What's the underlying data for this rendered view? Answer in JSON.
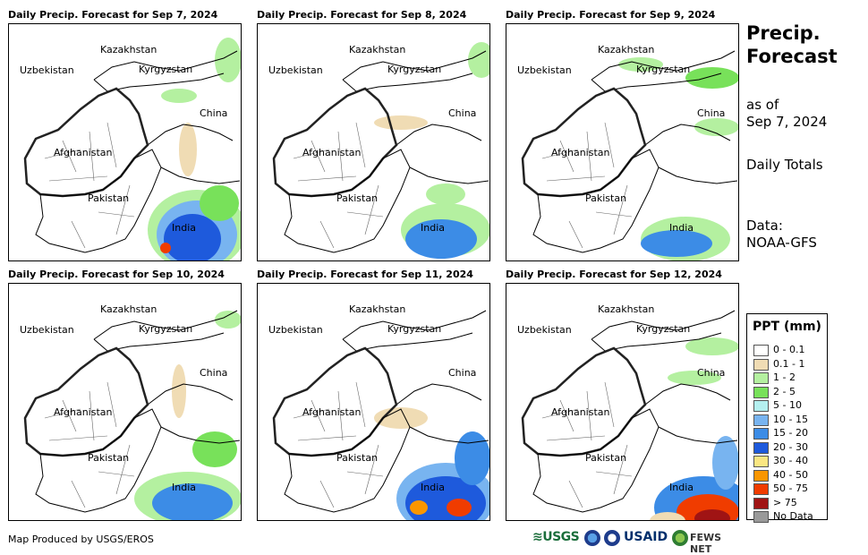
{
  "panels": [
    {
      "title": "Daily Precip. Forecast for Sep 7, 2024"
    },
    {
      "title": "Daily Precip. Forecast for Sep 8, 2024"
    },
    {
      "title": "Daily Precip. Forecast for Sep 9, 2024"
    },
    {
      "title": "Daily Precip. Forecast for Sep 10, 2024"
    },
    {
      "title": "Daily Precip. Forecast for Sep 11, 2024"
    },
    {
      "title": "Daily Precip. Forecast for Sep 12, 2024"
    }
  ],
  "country_labels": {
    "kazakhstan": "Kazakhstan",
    "uzbekistan": "Uzbekistan",
    "kyrgyzstan": "Kyrgyzstan",
    "china": "China",
    "afghanistan": "Afghanistan",
    "pakistan": "Pakistan",
    "india": "India"
  },
  "side": {
    "title_line1": "Precip.",
    "title_line2": "Forecast",
    "asof_line1": "as of",
    "asof_line2": "Sep 7, 2024",
    "totals": "Daily Totals",
    "data_line1": "Data:",
    "data_line2": "NOAA-GFS"
  },
  "legend": {
    "title": "PPT (mm)",
    "items": [
      {
        "label": "0 - 0.1",
        "color": "#ffffff"
      },
      {
        "label": "0.1 - 1",
        "color": "#f0dcb4"
      },
      {
        "label": "1 - 2",
        "color": "#b4f0a0"
      },
      {
        "label": "2 - 5",
        "color": "#78e15a"
      },
      {
        "label": "5 - 10",
        "color": "#b4f0f0"
      },
      {
        "label": "10 - 15",
        "color": "#78b4f0"
      },
      {
        "label": "15 - 20",
        "color": "#3c8ce6"
      },
      {
        "label": "20 - 30",
        "color": "#1e5adc"
      },
      {
        "label": "30 - 40",
        "color": "#fae682"
      },
      {
        "label": "40 - 50",
        "color": "#fa9600"
      },
      {
        "label": "50 - 75",
        "color": "#f03c00"
      },
      {
        "label": "> 75",
        "color": "#a01414"
      },
      {
        "label": "No Data",
        "color": "#999999"
      }
    ]
  },
  "credit": "Map Produced by USGS/EROS",
  "logos": {
    "usgs": "≋USGS",
    "usaid": "USAID",
    "fews": "FEWS NET"
  }
}
